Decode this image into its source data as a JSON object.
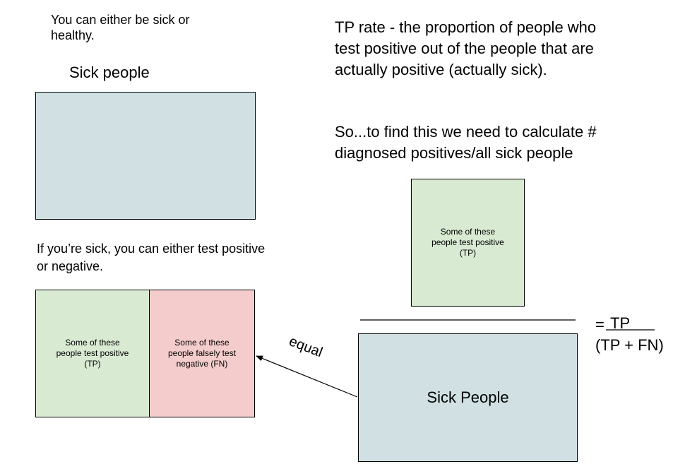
{
  "left": {
    "intro": "You can either be sick or\nhealthy.",
    "sick_people_label": "Sick people",
    "test_text": "If you’re sick, you can either test positive\nor negative.",
    "tp_box_text": "Some of these\npeople test positive\n(TP)",
    "fn_box_text": "Some of these\npeople falsely test\nnegative (FN)"
  },
  "right": {
    "tp_rate_def": "TP rate - the proportion of people who\ntest positive out of the people that are\nactually positive (actually sick).",
    "calc_text": "So...to find this we need to calculate #\ndiagnosed positives/all sick people",
    "numerator_box_text": "Some of these\npeople test positive\n(TP)",
    "denominator_box_text": "Sick People",
    "equals_sign": "=",
    "formula_numerator": "TP",
    "formula_denominator": "(TP + FN)",
    "equal_label": "equal"
  },
  "colors": {
    "blue": "#d0e0e3",
    "green": "#d9ead3",
    "red": "#f4cccc"
  }
}
